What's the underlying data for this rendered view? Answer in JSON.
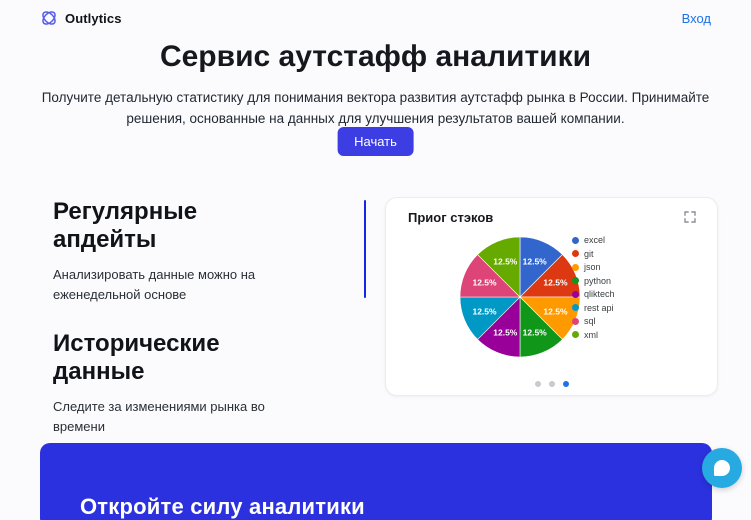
{
  "header": {
    "brand": "Outlytics",
    "login_label": "Вход"
  },
  "hero": {
    "title": "Сервис аутстафф аналитики",
    "subtitle": "Получите детальную статистику для понимания вектора развития аутстафф рынка в России. Принимайте решения, основанные на данных для улучшения результатов вашей компании.",
    "cta_label": "Начать"
  },
  "features": [
    {
      "title": "Регулярные апдейты",
      "description": "Анализировать данные можно на еженедельной основе"
    },
    {
      "title": "Исторические данные",
      "description": "Следите за изменениями рынка во времени"
    }
  ],
  "chart_card": {
    "title": "Приог стэков",
    "expand_icon": "fullscreen-icon",
    "pagination": {
      "total": 3,
      "active_index": 2
    }
  },
  "chart_data": {
    "type": "pie",
    "title": "Приог стэков",
    "labels": [
      "excel",
      "git",
      "json",
      "python",
      "qliktech",
      "rest api",
      "sql",
      "xml"
    ],
    "values": [
      12.5,
      12.5,
      12.5,
      12.5,
      12.5,
      12.5,
      12.5,
      12.5
    ],
    "unit": "%",
    "colors": [
      "#3366CC",
      "#DC3912",
      "#FF9900",
      "#109618",
      "#990099",
      "#0099C6",
      "#DD4477",
      "#66AA00"
    ],
    "legend_position": "right",
    "slice_labels_shown": true,
    "start_angle": "top",
    "direction": "clockwise"
  },
  "banner": {
    "title": "Откройте силу аналитики"
  },
  "chat": {
    "icon": "chat-bubble-icon"
  },
  "colors": {
    "brand-indigo": "#555be8",
    "link-blue": "#1a73e8",
    "button-blue": "#3d3de4",
    "divider-blue": "#1526e8",
    "banner-blue": "#2b31de",
    "chat-cyan": "#27a9e1",
    "dot-active": "#1a73e8",
    "dot-inactive": "#c9c9ce"
  }
}
